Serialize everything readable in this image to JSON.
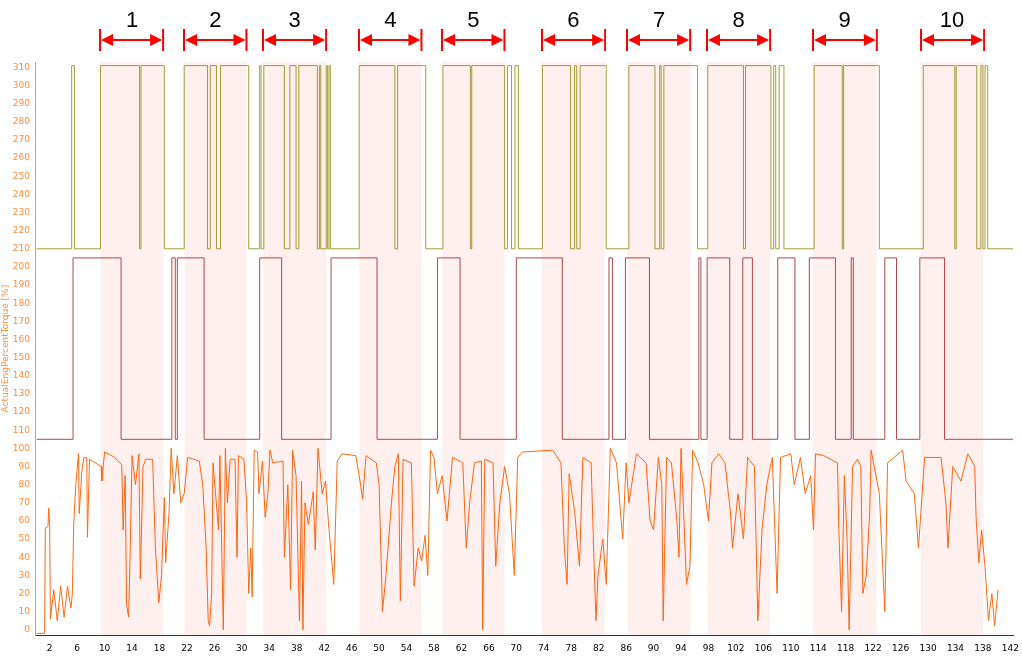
{
  "chart_data": {
    "type": "line",
    "ylabel": "ActualEngPercentTorque [%]",
    "marker": "none",
    "xlim": [
      0,
      142.4
    ],
    "xticks": [
      2,
      6,
      10,
      14,
      18,
      22,
      26,
      30,
      34,
      38,
      42,
      46,
      50,
      54,
      58,
      62,
      66,
      70,
      74,
      78,
      82,
      86,
      90,
      94,
      98,
      102,
      106,
      110,
      114,
      118,
      122,
      126,
      130,
      134,
      138,
      142
    ],
    "ylim": [
      -3,
      313
    ],
    "yticks": [
      0,
      10,
      20,
      30,
      40,
      50,
      60,
      70,
      80,
      90,
      100,
      110,
      120,
      130,
      140,
      150,
      160,
      170,
      180,
      190,
      200,
      210,
      220,
      230,
      240,
      250,
      260,
      270,
      280,
      290,
      300,
      310
    ],
    "bands": [
      {
        "axis": "x",
        "from": 9.4,
        "to": 18.6,
        "label": "1",
        "color": "#ff0000"
      },
      {
        "axis": "x",
        "from": 21.6,
        "to": 30.7,
        "label": "2",
        "color": "#ff0000"
      },
      {
        "axis": "x",
        "from": 33.1,
        "to": 42.3,
        "label": "3",
        "color": "#ff0000"
      },
      {
        "axis": "x",
        "from": 47.1,
        "to": 56.2,
        "label": "4",
        "color": "#ff0000"
      },
      {
        "axis": "x",
        "from": 59.2,
        "to": 68.3,
        "label": "5",
        "color": "#ff0000"
      },
      {
        "axis": "x",
        "from": 73.7,
        "to": 82.9,
        "label": "6",
        "color": "#ff0000"
      },
      {
        "axis": "x",
        "from": 86.2,
        "to": 95.4,
        "label": "7",
        "color": "#ff0000"
      },
      {
        "axis": "x",
        "from": 97.8,
        "to": 107.0,
        "label": "8",
        "color": "#ff0000"
      },
      {
        "axis": "x",
        "from": 113.2,
        "to": 122.5,
        "label": "9",
        "color": "#ff0000"
      },
      {
        "axis": "x",
        "from": 128.9,
        "to": 138.1,
        "label": "10",
        "color": "#ff0000"
      }
    ],
    "series": [
      {
        "type": "step",
        "color": "#a3a033",
        "x": [
          0.1,
          5.2,
          5.6,
          9.4,
          15.1,
          15.3,
          18.7,
          21.6,
          25.0,
          25.4,
          26.3,
          26.9,
          31.0,
          32.6,
          32.8,
          33.2,
          36.2,
          37.0,
          37.9,
          38.3,
          41.0,
          41.3,
          41.5,
          42.3,
          42.5,
          42.7,
          42.9,
          47.1,
          52.3,
          52.7,
          56.8,
          59.3,
          63.3,
          63.5,
          68.3,
          68.7,
          69.3,
          69.8,
          70.3,
          73.8,
          77.9,
          78.5,
          78.8,
          79.3,
          83.1,
          86.4,
          90.2,
          90.9,
          91.1,
          91.5,
          96.4,
          97.9,
          103.1,
          103.4,
          107.1,
          107.5,
          107.8,
          108.3,
          109.0,
          113.4,
          117.5,
          117.7,
          122.9,
          129.3,
          133.9,
          134.1,
          137.1,
          137.7,
          138.0,
          138.3,
          138.7,
          142.4
        ],
        "values": [
          210,
          311,
          210,
          311,
          210,
          311,
          210,
          311,
          210,
          311,
          210,
          311,
          210,
          311,
          210,
          311,
          210,
          311,
          210,
          311,
          210,
          311,
          210,
          311,
          210,
          311,
          210,
          311,
          210,
          311,
          210,
          311,
          210,
          311,
          210,
          311,
          210,
          311,
          210,
          311,
          210,
          311,
          210,
          311,
          210,
          311,
          210,
          311,
          210,
          311,
          210,
          311,
          210,
          311,
          210,
          311,
          210,
          311,
          210,
          311,
          210,
          311,
          210,
          311,
          210,
          311,
          210,
          311,
          210,
          311,
          210,
          210
        ]
      },
      {
        "type": "step",
        "color": "#b04848",
        "x": [
          0.1,
          5.4,
          12.4,
          19.8,
          20.3,
          20.6,
          24.5,
          32.6,
          35.8,
          43.0,
          49.7,
          58.5,
          61.8,
          70.0,
          76.7,
          83.5,
          84.0,
          85.9,
          89.4,
          96.6,
          96.9,
          97.8,
          101.1,
          103.0,
          104.4,
          108.1,
          110.6,
          112.7,
          116.5,
          118.8,
          119.1,
          123.7,
          125.4,
          128.8,
          132.4,
          142.4
        ],
        "values": [
          105,
          205,
          105,
          205,
          105,
          205,
          105,
          205,
          105,
          205,
          105,
          205,
          105,
          205,
          105,
          205,
          105,
          205,
          105,
          205,
          105,
          205,
          105,
          205,
          105,
          205,
          105,
          205,
          105,
          205,
          105,
          205,
          105,
          205,
          105,
          105
        ]
      },
      {
        "type": "line",
        "color": "#ff6a10",
        "x": [
          0.1,
          1.26,
          1.36,
          1.75,
          1.85,
          2.0,
          2.1,
          2.6,
          3.1,
          3.6,
          4.1,
          4.6,
          5.1,
          5.3,
          5.5,
          5.8,
          6.2,
          6.3,
          6.7,
          7.0,
          7.4,
          7.5,
          7.8,
          9.5,
          9.6,
          10.0,
          11.5,
          12.5,
          12.7,
          13.0,
          13.2,
          13.5,
          13.7,
          14.0,
          14.5,
          15.0,
          15.2,
          15.6,
          16.0,
          17.0,
          17.4,
          17.9,
          18.3,
          18.7,
          18.9,
          19.4,
          19.7,
          20.1,
          20.6,
          21.1,
          21.6,
          22.1,
          23.8,
          24.3,
          24.8,
          25.1,
          25.3,
          25.6,
          25.8,
          26.6,
          26.8,
          27.3,
          27.6,
          27.9,
          28.3,
          29.0,
          29.3,
          29.5,
          30.3,
          30.7,
          31.0,
          31.3,
          31.5,
          31.8,
          32.3,
          32.5,
          33.0,
          33.4,
          33.8,
          34.1,
          34.5,
          36.0,
          36.2,
          36.7,
          37.1,
          37.4,
          37.9,
          38.4,
          38.7,
          38.9,
          39.2,
          39.7,
          40.4,
          40.7,
          41.1,
          41.7,
          42.2,
          42.6,
          43.1,
          43.4,
          43.9,
          44.6,
          46.6,
          47.1,
          47.6,
          48.1,
          49.6,
          50.0,
          50.5,
          51.0,
          51.8,
          52.3,
          52.8,
          53.1,
          53.5,
          54.7,
          55.1,
          55.7,
          56.2,
          56.7,
          57.1,
          57.5,
          58.0,
          58.5,
          59.2,
          59.9,
          60.7,
          62.2,
          62.7,
          63.2,
          63.9,
          64.9,
          65.1,
          65.4,
          66.6,
          67.0,
          67.6,
          68.3,
          69.0,
          69.7,
          70.2,
          70.9,
          75.3,
          76.5,
          77.0,
          77.4,
          77.7,
          78.5,
          79.2,
          79.7,
          80.9,
          81.3,
          81.6,
          81.9,
          82.6,
          83.1,
          83.7,
          84.6,
          85.5,
          86.0,
          86.4,
          87.5,
          88.9,
          89.5,
          90.0,
          90.7,
          91.2,
          91.4,
          91.9,
          92.6,
          93.4,
          93.7,
          94.0,
          94.8,
          95.3,
          95.7,
          96.5,
          97.3,
          98.0,
          98.5,
          99.5,
          100.4,
          101.2,
          101.5,
          102.3,
          103.1,
          103.7,
          104.7,
          105.2,
          105.8,
          106.5,
          107.3,
          108.0,
          108.5,
          110.0,
          110.5,
          111.4,
          112.1,
          112.9,
          113.3,
          113.6,
          114.8,
          116.8,
          117.0,
          117.4,
          117.8,
          118.2,
          118.5,
          119.0,
          119.7,
          120.2,
          120.5,
          121.0,
          121.5,
          121.7,
          122.9,
          123.7,
          124.1,
          126.3,
          126.8,
          128.0,
          128.6,
          129.5,
          131.9,
          132.6,
          132.9,
          133.6,
          134.8,
          135.8,
          136.8,
          137.0,
          137.4,
          137.8,
          138.3,
          138.8,
          139.3,
          139.7,
          140.2
        ],
        "values": [
          -2,
          -2,
          56,
          57,
          67,
          58,
          6,
          22,
          5,
          24,
          7,
          24,
          12,
          20,
          58,
          80,
          97,
          64,
          88,
          95,
          95,
          51,
          94,
          90,
          82,
          98,
          95,
          91,
          55,
          85,
          14,
          7,
          38,
          96,
          80,
          97,
          28,
          90,
          94,
          94,
          45,
          15,
          30,
          73,
          37,
          65,
          100,
          75,
          96,
          70,
          75,
          95,
          93,
          80,
          45,
          5,
          2,
          20,
          92,
          55,
          96,
          0,
          100,
          70,
          94,
          94,
          40,
          96,
          94,
          70,
          20,
          45,
          18,
          99,
          98,
          75,
          93,
          62,
          75,
          99,
          92,
          93,
          40,
          80,
          22,
          99,
          85,
          5,
          82,
          0,
          70,
          58,
          76,
          44,
          100,
          75,
          82,
          60,
          38,
          25,
          93,
          97,
          96,
          85,
          72,
          96,
          92,
          80,
          10,
          30,
          70,
          90,
          97,
          16,
          94,
          92,
          24,
          45,
          38,
          52,
          30,
          99,
          95,
          75,
          85,
          60,
          95,
          92,
          45,
          70,
          92,
          93,
          0,
          94,
          92,
          35,
          70,
          90,
          75,
          30,
          95,
          98,
          99,
          92,
          45,
          25,
          86,
          65,
          35,
          95,
          92,
          40,
          5,
          30,
          50,
          25,
          100,
          92,
          50,
          92,
          70,
          97,
          92,
          60,
          55,
          95,
          80,
          5,
          95,
          92,
          60,
          40,
          100,
          25,
          35,
          99,
          92,
          80,
          60,
          92,
          97,
          92,
          65,
          45,
          75,
          50,
          95,
          90,
          5,
          55,
          80,
          95,
          20,
          95,
          97,
          80,
          95,
          75,
          85,
          55,
          97,
          96,
          92,
          55,
          10,
          85,
          50,
          0,
          90,
          94,
          90,
          20,
          30,
          65,
          99,
          75,
          10,
          92,
          99,
          82,
          75,
          45,
          95,
          95,
          70,
          45,
          90,
          82,
          97,
          90,
          62,
          37,
          55,
          35,
          5,
          20,
          2,
          22
        ]
      }
    ]
  }
}
